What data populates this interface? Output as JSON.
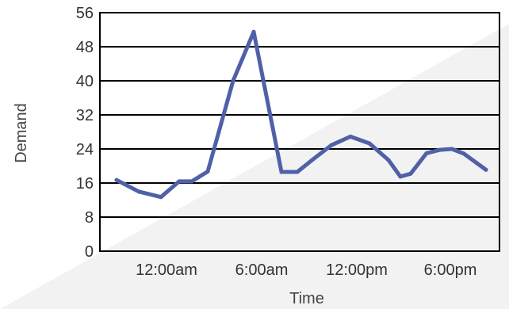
{
  "chart_data": {
    "type": "line",
    "title": "",
    "xlabel": "Time",
    "ylabel": "Demand",
    "ylim": [
      0,
      56
    ],
    "y_ticks": [
      0,
      8,
      16,
      24,
      32,
      40,
      48,
      56
    ],
    "x_tick_labels": [
      "12:00am",
      "6:00am",
      "12:00pm",
      "6:00pm"
    ],
    "grid": "horizontal",
    "legend": "none",
    "series": [
      {
        "color": "#5060a8",
        "values": [
          16.7,
          14,
          12.7,
          16.4,
          16.4,
          18.7,
          40,
          51.5,
          18.6,
          18.6,
          21.6,
          24.9,
          26.9,
          25.3,
          21.4,
          17.5,
          18.2,
          23,
          23.8,
          24,
          22.9,
          19.1
        ]
      }
    ]
  }
}
